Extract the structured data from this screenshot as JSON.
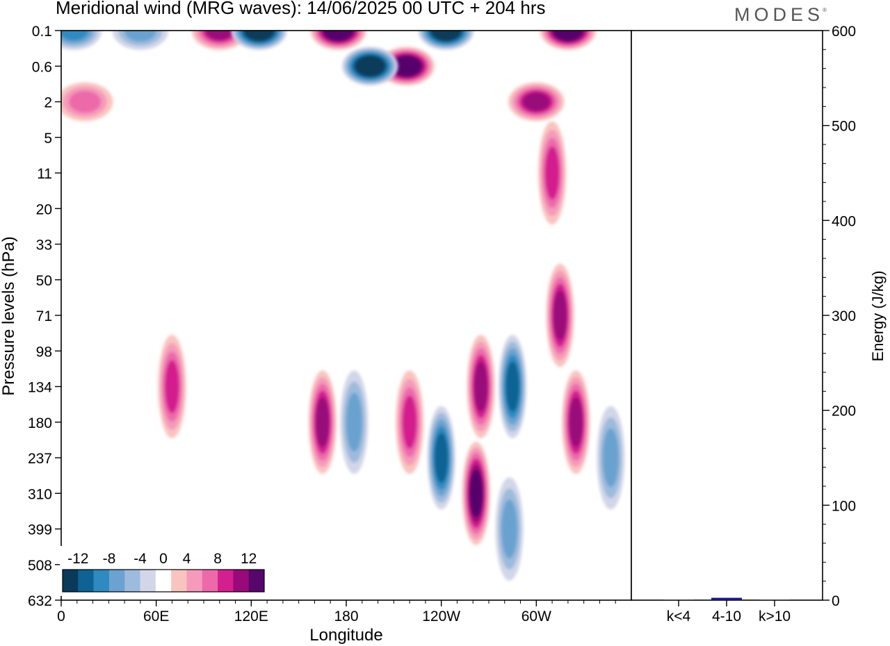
{
  "title": "Meridional wind (MRG waves):  14/06/2025  00 UTC  + 204 hrs",
  "brand": "MODES",
  "brand_mark": "®",
  "chart_data": [
    {
      "type": "heatmap",
      "variable": "Meridional wind",
      "xlabel": "Longitude",
      "ylabel": "Pressure levels (hPa)",
      "x_ticks": [
        "0",
        "60E",
        "120E",
        "180",
        "120W",
        "60W"
      ],
      "x_tick_values": [
        0,
        60,
        120,
        180,
        240,
        300
      ],
      "xlim": [
        0,
        360
      ],
      "y_ticks": [
        "0.1",
        "0.6",
        "2",
        "5",
        "11",
        "20",
        "33",
        "50",
        "71",
        "98",
        "134",
        "180",
        "237",
        "310",
        "399",
        "508",
        "632"
      ],
      "y_scale": "pressure levels (top 0.1 hPa, bottom 632 hPa)",
      "colorbar": {
        "labels": [
          "-12",
          "-8",
          "-4",
          "0",
          "4",
          "8",
          "12"
        ],
        "levels": [
          -14,
          -12,
          -10,
          -8,
          -6,
          -4,
          -2,
          2,
          4,
          6,
          8,
          10,
          12,
          14
        ],
        "colors": [
          "#0a3a5a",
          "#0e6394",
          "#2f8ac0",
          "#6ba2cf",
          "#9dbbdc",
          "#d2d6e8",
          "#ffffff",
          "#f9c4c0",
          "#f59aba",
          "#ec6aaa",
          "#d41f8f",
          "#99097a",
          "#57066c"
        ]
      },
      "features": [
        {
          "lon": 8,
          "level": "0.1",
          "value": -8
        },
        {
          "lon": 50,
          "level": "0.1",
          "value": -6
        },
        {
          "lon": 100,
          "level": "0.1",
          "value": 10
        },
        {
          "lon": 125,
          "level": "0.1",
          "value": -14
        },
        {
          "lon": 175,
          "level": "0.1",
          "value": 14
        },
        {
          "lon": 218,
          "level": "0.6",
          "value": 14
        },
        {
          "lon": 243,
          "level": "0.1",
          "value": -14
        },
        {
          "lon": 320,
          "level": "0.1",
          "value": 14
        },
        {
          "lon": 195,
          "level": "0.6",
          "value": -14
        },
        {
          "lon": 15,
          "level": "2",
          "value": 6
        },
        {
          "lon": 300,
          "level": "2",
          "value": 10
        },
        {
          "lon": 70,
          "level": "134",
          "value": 8
        },
        {
          "lon": 165,
          "level": "180",
          "value": 10
        },
        {
          "lon": 185,
          "level": "180",
          "value": -6
        },
        {
          "lon": 220,
          "level": "180",
          "value": 8
        },
        {
          "lon": 240,
          "level": "237",
          "value": -10
        },
        {
          "lon": 265,
          "level": "134",
          "value": 10
        },
        {
          "lon": 262,
          "level": "310",
          "value": 12
        },
        {
          "lon": 285,
          "level": "134",
          "value": -10
        },
        {
          "lon": 283,
          "level": "399",
          "value": -6
        },
        {
          "lon": 325,
          "level": "180",
          "value": 10
        },
        {
          "lon": 347,
          "level": "237",
          "value": -6
        },
        {
          "lon": 315,
          "level": "71",
          "value": 10
        },
        {
          "lon": 310,
          "level": "11",
          "value": 8
        }
      ]
    },
    {
      "type": "bar",
      "ylabel": "Energy (J/kg)",
      "ylim": [
        0,
        600
      ],
      "y_ticks": [
        "0",
        "100",
        "200",
        "300",
        "400",
        "500",
        "600"
      ],
      "categories": [
        "k<4",
        "4-10",
        "k>10"
      ],
      "values": [
        0,
        2.5,
        0
      ],
      "bar_color": "#1a1a80"
    }
  ]
}
